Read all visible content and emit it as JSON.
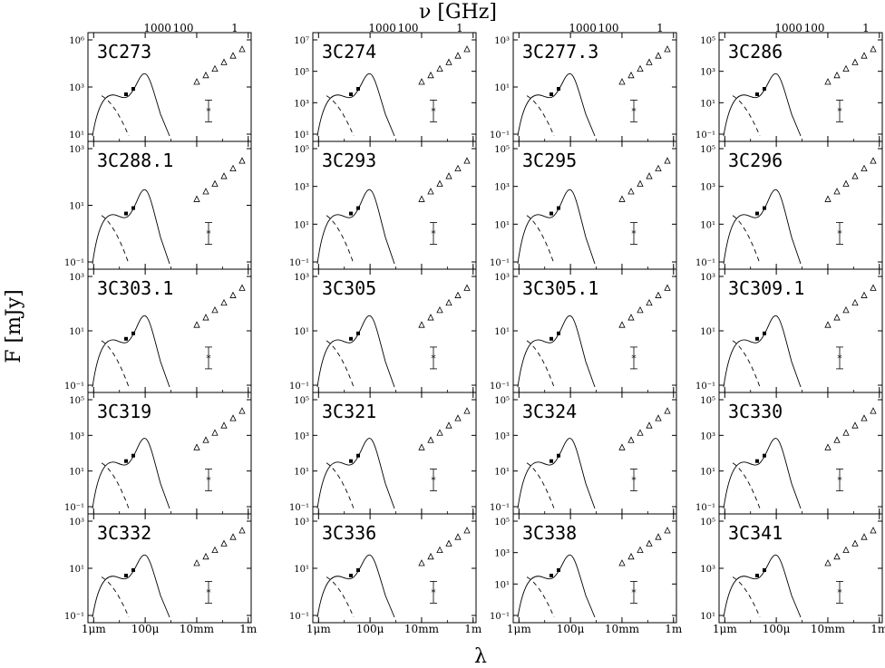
{
  "figure": {
    "top_axis_label": "ν [GHz]",
    "bottom_axis_label": "λ",
    "y_axis_label": "F [mJy]",
    "top_ticks": [
      "1000",
      "100",
      "1"
    ],
    "bottom_ticks": [
      "1μm",
      "100μ",
      "10mm",
      "1m"
    ]
  },
  "chart_data": {
    "type": "scatter",
    "layout": "grid 5 rows × 4 columns of SED panels",
    "x_scale": "log (wavelength λ)",
    "y_scale": "log (flux F in mJy)",
    "xlim": [
      "1μm",
      "1m"
    ],
    "x_tick_values_m": [
      1e-06,
      0.0001,
      0.01,
      1
    ],
    "top_tick_values_ghz": [
      1000,
      100,
      1
    ],
    "panels": [
      {
        "name": "3C273",
        "yticks": [
          "10⁶",
          "10³",
          "10¹"
        ]
      },
      {
        "name": "3C274",
        "yticks": [
          "10⁷",
          "10⁵",
          "10³",
          "10¹"
        ]
      },
      {
        "name": "3C277.3",
        "yticks": [
          "10³",
          "10¹",
          "10⁻¹"
        ]
      },
      {
        "name": "3C286",
        "yticks": [
          "10⁵",
          "10³",
          "10¹",
          "10⁻¹"
        ]
      },
      {
        "name": "3C288.1",
        "yticks": [
          "10³",
          "10¹",
          "10⁻¹"
        ]
      },
      {
        "name": "3C293",
        "yticks": [
          "10⁵",
          "10³",
          "10¹",
          "10⁻¹"
        ]
      },
      {
        "name": "3C295",
        "yticks": [
          "10⁵",
          "10³",
          "10¹",
          "10⁻¹"
        ]
      },
      {
        "name": "3C296",
        "yticks": [
          "10⁵",
          "10³",
          "10¹",
          "10⁻¹"
        ]
      },
      {
        "name": "3C303.1",
        "yticks": [
          "10³",
          "10¹",
          "10⁻¹"
        ]
      },
      {
        "name": "3C305",
        "yticks": [
          "10³",
          "10¹",
          "10⁻¹"
        ]
      },
      {
        "name": "3C305.1",
        "yticks": [
          "10³",
          "10¹",
          "10⁻¹"
        ]
      },
      {
        "name": "3C309.1",
        "yticks": [
          "10³",
          "10¹",
          "10⁻¹"
        ]
      },
      {
        "name": "3C319",
        "yticks": [
          "10⁵",
          "10³",
          "10¹",
          "10⁻¹"
        ]
      },
      {
        "name": "3C321",
        "yticks": [
          "10⁵",
          "10³",
          "10¹",
          "10⁻¹"
        ]
      },
      {
        "name": "3C324",
        "yticks": [
          "10⁵",
          "10³",
          "10¹",
          "10⁻¹"
        ]
      },
      {
        "name": "3C330",
        "yticks": [
          "10⁵",
          "10³",
          "10¹",
          "10⁻¹"
        ]
      },
      {
        "name": "3C332",
        "yticks": [
          "10³",
          "10¹",
          "10⁻¹"
        ]
      },
      {
        "name": "3C336",
        "yticks": [
          "10³",
          "10¹",
          "10⁻¹"
        ]
      },
      {
        "name": "3C338",
        "yticks": [
          "10⁵",
          "10³",
          "10¹",
          "10⁻¹"
        ]
      },
      {
        "name": "3C341",
        "yticks": [
          "10⁵",
          "10³",
          "10¹"
        ]
      }
    ]
  }
}
